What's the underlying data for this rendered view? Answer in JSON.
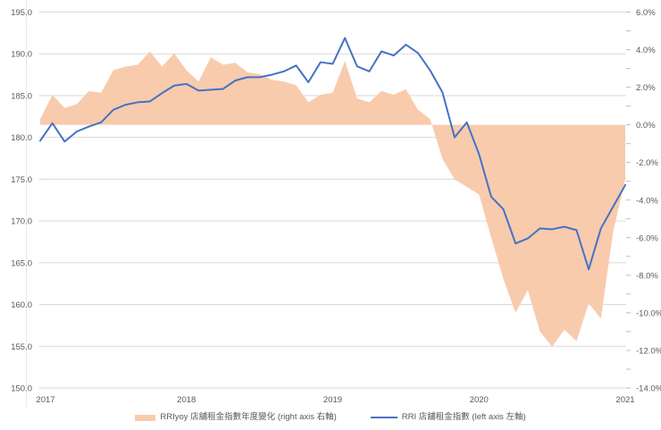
{
  "chart_data": {
    "type": "combo",
    "title": "",
    "frequency": "monthly",
    "x_start": "2017-01",
    "x_end": "2021-01",
    "x_labels": [
      "2017",
      "2018",
      "2019",
      "2020",
      "2021"
    ],
    "grid": true,
    "legend_position": "bottom",
    "colors": {
      "area": "#F8CBAD",
      "line": "#4472C4",
      "gridline": "#D9D9D9",
      "tick": "#BFBFBF",
      "axis_text": "#595959",
      "chart_border": "#E8E8E8"
    },
    "left_axis": {
      "min": 150,
      "max": 195,
      "step": 5,
      "ticks": [
        "195.0",
        "190.0",
        "185.0",
        "180.0",
        "175.0",
        "170.0",
        "165.0",
        "160.0",
        "155.0",
        "150.0"
      ]
    },
    "right_axis": {
      "min": -14,
      "max": 6,
      "step": 2,
      "minor_step": 1,
      "ticks": [
        "6.0%",
        "4.0%",
        "2.0%",
        "0.0%",
        "-2.0%",
        "-4.0%",
        "-6.0%",
        "-8.0%",
        "-10.0%",
        "-12.0%",
        "-14.0%"
      ]
    },
    "series": [
      {
        "name": "RRIyoy 店舖租金指數年度變化 (right axis 右軸)",
        "type": "area",
        "axis": "right",
        "unit": "%",
        "values": [
          0.3,
          1.6,
          0.9,
          1.1,
          1.8,
          1.7,
          2.9,
          3.1,
          3.2,
          3.9,
          3.1,
          3.8,
          2.9,
          2.3,
          3.6,
          3.2,
          3.3,
          2.8,
          2.7,
          2.4,
          2.3,
          2.1,
          1.2,
          1.6,
          1.7,
          3.4,
          1.4,
          1.2,
          1.8,
          1.6,
          1.9,
          0.8,
          0.3,
          -1.8,
          -2.9,
          -3.3,
          -3.7,
          -6.0,
          -8.2,
          -10.0,
          -8.8,
          -11.0,
          -11.8,
          -10.9,
          -11.5,
          -9.5,
          -10.3,
          -5.7,
          -2.9
        ]
      },
      {
        "name": "RRI 店舖租金指數 (left axis 左軸)",
        "type": "line",
        "axis": "left",
        "unit": "index",
        "values": [
          179.6,
          181.7,
          179.5,
          180.7,
          181.3,
          181.8,
          183.3,
          183.9,
          184.2,
          184.3,
          185.3,
          186.2,
          186.4,
          185.6,
          185.7,
          185.8,
          186.8,
          187.2,
          187.2,
          187.5,
          187.9,
          188.6,
          186.6,
          189.0,
          188.8,
          191.9,
          188.5,
          187.9,
          190.3,
          189.8,
          191.1,
          190.1,
          188.0,
          185.4,
          180.0,
          181.8,
          178.0,
          172.9,
          171.4,
          167.3,
          167.9,
          169.1,
          169.0,
          169.3,
          168.9,
          164.2,
          169.1,
          171.7,
          174.3
        ]
      }
    ]
  }
}
